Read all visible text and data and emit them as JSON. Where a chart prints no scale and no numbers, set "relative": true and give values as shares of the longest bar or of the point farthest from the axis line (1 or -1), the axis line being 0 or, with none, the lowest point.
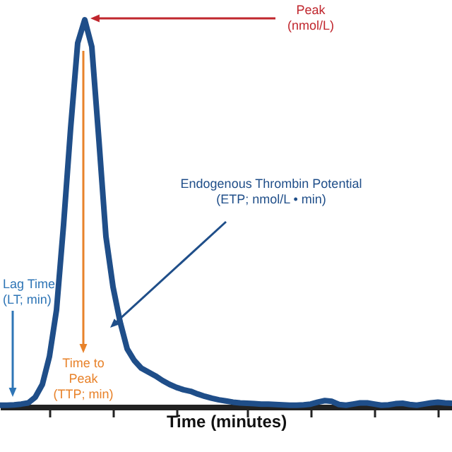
{
  "chart_data": {
    "type": "line",
    "relative": true,
    "xlabel": "Time (minutes)",
    "categories": [
      null,
      null,
      null,
      null,
      null,
      null,
      null,
      null,
      null,
      null,
      null,
      null,
      null,
      null,
      null,
      null,
      null,
      null,
      null,
      null,
      null,
      null,
      null,
      null,
      null,
      null,
      null,
      null,
      null,
      null,
      null,
      null,
      null,
      null,
      null,
      null,
      null,
      null,
      null,
      null,
      null,
      null,
      null,
      null,
      null,
      null,
      null,
      null,
      null,
      null,
      null,
      null,
      null,
      null,
      null,
      null,
      null,
      null,
      null,
      null,
      null,
      null,
      null,
      null,
      null
    ],
    "series": [
      {
        "color": "#1f4e89",
        "values": [
          0.004,
          0.004,
          0.005,
          0.007,
          0.01,
          0.025,
          0.058,
          0.13,
          0.25,
          0.47,
          0.72,
          0.94,
          1,
          0.93,
          0.69,
          0.44,
          0.31,
          0.22,
          0.15,
          0.12,
          0.1,
          0.09,
          0.08,
          0.068,
          0.058,
          0.05,
          0.044,
          0.04,
          0.033,
          0.027,
          0.022,
          0.018,
          0.015,
          0.012,
          0.01,
          0.009,
          0.008,
          0.007,
          0.007,
          0.006,
          0.005,
          0.004,
          0.004,
          0.005,
          0.007,
          0.012,
          0.016,
          0.014,
          0.006,
          0.004,
          0.007,
          0.01,
          0.01,
          0.007,
          0.004,
          0.005,
          0.008,
          0.009,
          0.006,
          0.004,
          0.007,
          0.01,
          0.012,
          0.01,
          0.009
        ]
      }
    ],
    "annotations": [
      "Peak (nmol/L)",
      "Endogenous Thrombin Potential (ETP; nmol/L • min)",
      "Time to Peak (TTP; min)",
      "Lag Time (LT; min)"
    ]
  }
}
